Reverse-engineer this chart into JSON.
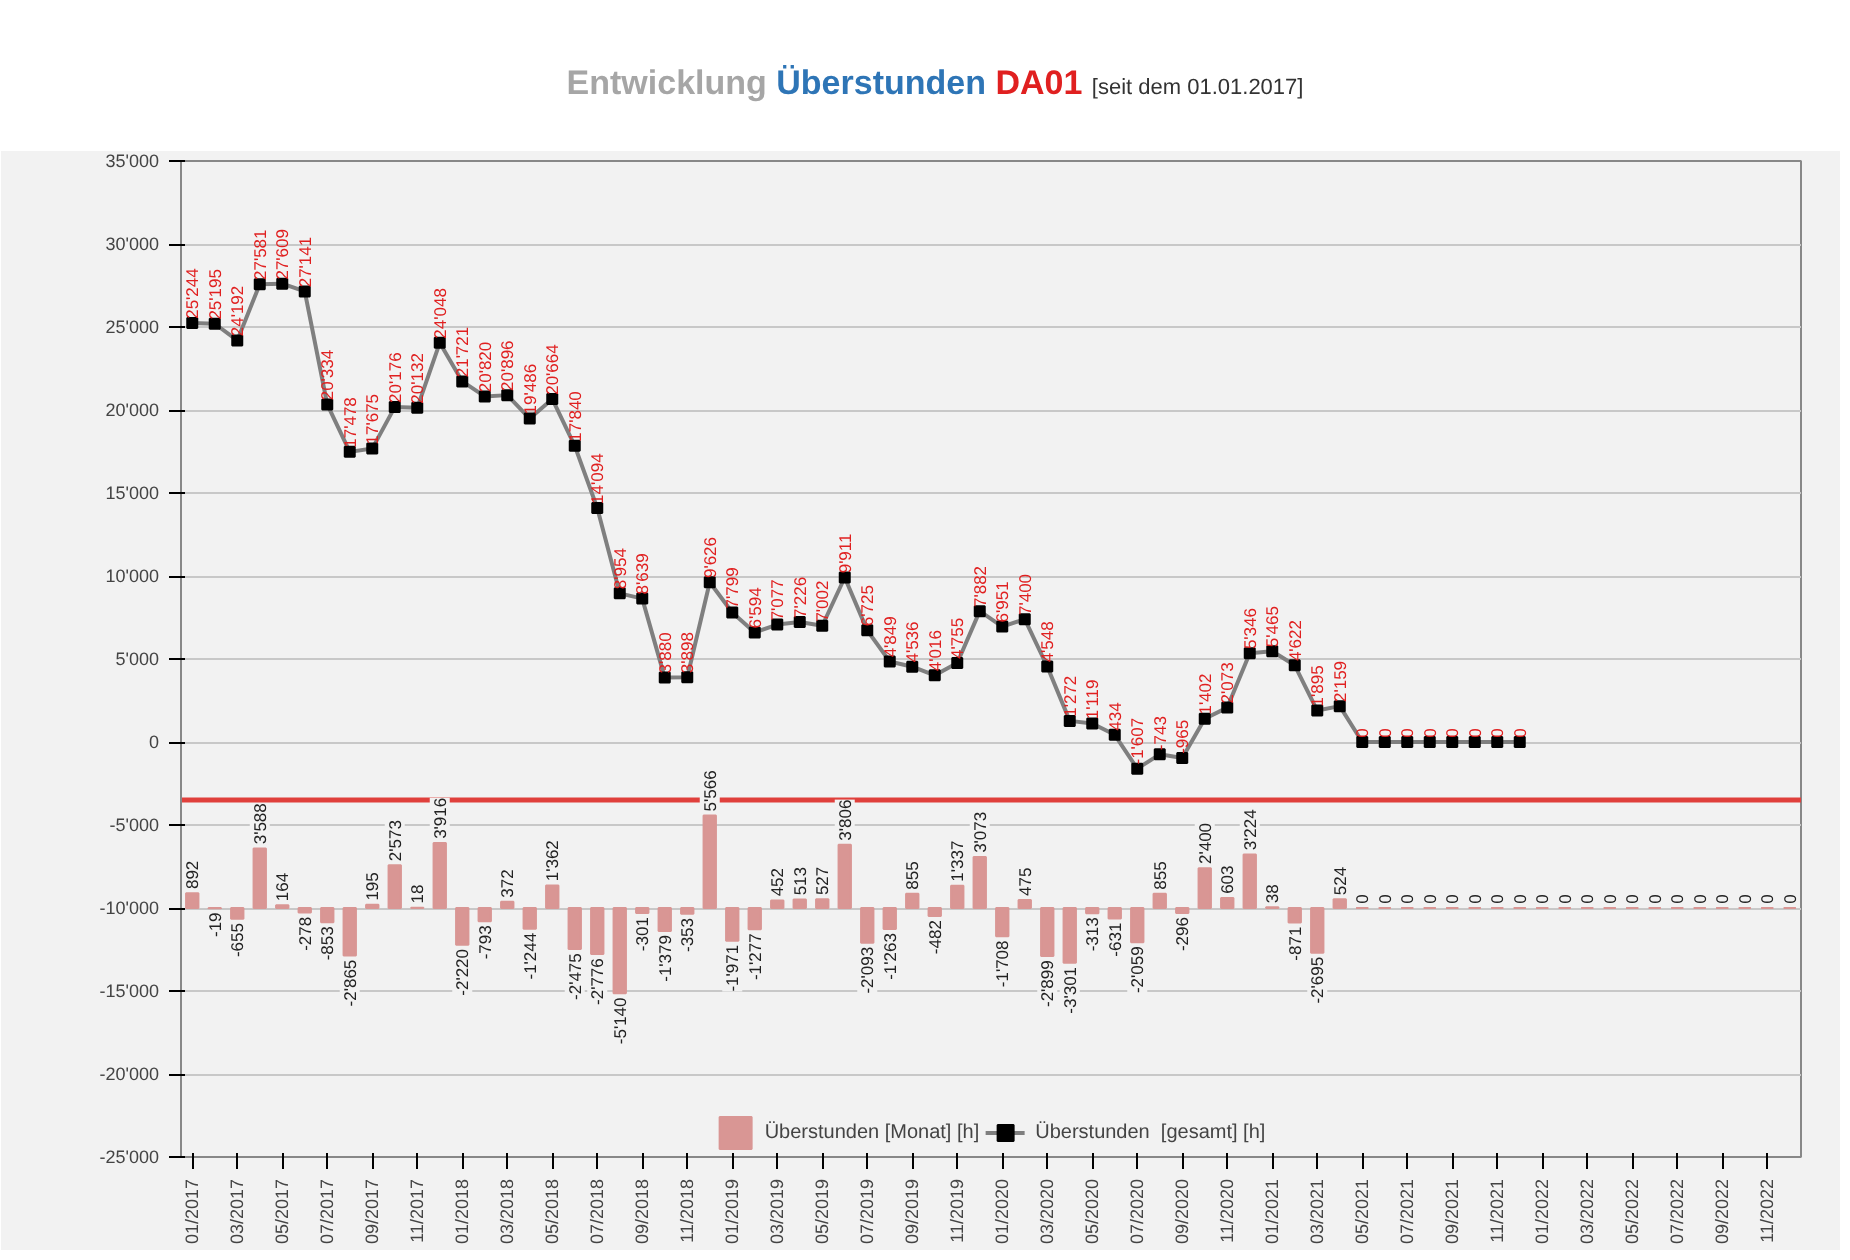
{
  "chart_data": {
    "type": "bar",
    "title": "Entwicklung Überstunden DA01",
    "subtitle": "[seit dem 01.01.2017]",
    "categories": [
      "01/2017",
      null,
      "03/2017",
      null,
      "05/2017",
      null,
      "07/2017",
      null,
      "09/2017",
      null,
      "11/2017",
      null,
      "01/2018",
      null,
      "03/2018",
      null,
      "05/2018",
      null,
      "07/2018",
      null,
      "09/2018",
      null,
      "11/2018",
      null,
      "01/2019",
      null,
      "03/2019",
      null,
      "05/2019",
      null,
      "07/2019",
      null,
      "09/2019",
      null,
      "11/2019",
      null,
      "01/2020",
      null,
      "03/2020",
      null,
      "05/2020",
      null,
      "07/2020",
      null,
      "09/2020",
      null,
      "11/2020",
      null,
      "01/2021",
      null,
      "03/2021",
      null,
      "05/2021",
      null,
      "07/2021",
      null,
      "09/2021",
      null,
      "11/2021",
      null,
      "01/2022",
      null,
      "03/2022",
      null,
      "05/2022",
      null,
      "07/2022",
      null,
      "09/2022",
      null,
      "11/2022",
      null
    ],
    "series": [
      {
        "name": "Überstunden [Monat] [h]",
        "color": "#d99694",
        "base": [
          -10000,
          -10000,
          -10000,
          -10000,
          -10000,
          -10000,
          -10000,
          -10000,
          -10000,
          -10000,
          -10000,
          -10000,
          -10000,
          -10000,
          -10000,
          -10000,
          -10000,
          -10000,
          -10000,
          -10000,
          -10000,
          -10000,
          -10000,
          -10000,
          -10000,
          -10000,
          -10000,
          -10000,
          -10000,
          -10000,
          -10000,
          -10000,
          -10000,
          -10000,
          -10000,
          -10000,
          -10000,
          -10000,
          -10000,
          -10000,
          -10000,
          -10000,
          -10000,
          -10000,
          -10000,
          -10000,
          -10000,
          -10000,
          -10000,
          -10000,
          -10000,
          -10000,
          -10000,
          -10000,
          -10000,
          -10000,
          -10000,
          -10000,
          -10000,
          -10000,
          -10000,
          -10000,
          -10000,
          -10000,
          -10000,
          -10000,
          -10000,
          -10000,
          -10000,
          -10000,
          -10000,
          -10000
        ],
        "values": [
          892,
          -19,
          -655,
          3588,
          164,
          -278,
          -853,
          -2865,
          195,
          2573,
          18,
          3916,
          -2220,
          -793,
          372,
          -1244,
          1362,
          -2475,
          -2776,
          -5140,
          -301,
          -1379,
          -353,
          5566,
          -1971,
          -1277,
          452,
          513,
          527,
          3806,
          -2093,
          -1263,
          855,
          -482,
          1337,
          3073,
          -1708,
          475,
          -2899,
          -3301,
          -313,
          -631,
          -2059,
          855,
          -296,
          2400,
          603,
          3224,
          38,
          -871,
          -2695,
          524,
          0,
          0,
          0,
          0,
          0,
          0,
          0,
          0,
          0,
          0,
          0,
          0,
          0,
          0,
          0,
          0,
          0,
          0,
          0,
          0
        ],
        "value_labels": [
          "892",
          "-19",
          "-655",
          "3'588",
          "164",
          "-278",
          "-853",
          "-2'865",
          "195",
          "2'573",
          "18",
          "3'916",
          "-2'220",
          "-793",
          "372",
          "-1'244",
          "1'362",
          "-2'475",
          "-2'776",
          "-5'140",
          "-301",
          "-1'379",
          "-353",
          "5'566",
          "-1'971",
          "-1'277",
          "452",
          "513",
          "527",
          "3'806",
          "-2'093",
          "-1'263",
          "855",
          "-482",
          "1'337",
          "3'073",
          "-1'708",
          "475",
          "-2'899",
          "-3'301",
          "-313",
          "-631",
          "-2'059",
          "855",
          "-296",
          "2'400",
          "603",
          "3'224",
          "38",
          "-871",
          "-2'695",
          "524",
          "0",
          "0",
          "0",
          "0",
          "0",
          "0",
          "0",
          "0",
          "0",
          "0",
          "0",
          "0",
          "0",
          "0",
          "0",
          "0",
          "0",
          "0",
          "0",
          "0"
        ]
      },
      {
        "name": "Überstunden  [gesamt] [h]",
        "type": "line",
        "color": "#7f7f7f",
        "marker": "square",
        "values": [
          25244,
          25195,
          24192,
          27581,
          27609,
          27141,
          20334,
          17478,
          17675,
          20176,
          20132,
          24048,
          21721,
          20820,
          20896,
          19486,
          20664,
          17840,
          14094,
          8954,
          8639,
          3880,
          3898,
          9626,
          7799,
          6594,
          7077,
          7226,
          7002,
          9911,
          6725,
          4849,
          4536,
          4016,
          4755,
          7882,
          6951,
          7400,
          4548,
          1272,
          1119,
          434,
          -1607,
          -743,
          -965,
          1402,
          2073,
          5346,
          5465,
          4622,
          1895,
          2159,
          0,
          0,
          0,
          0,
          0,
          0,
          0,
          0,
          null,
          null,
          null,
          null,
          null,
          null,
          null,
          null,
          null,
          null,
          null,
          null
        ],
        "value_labels": [
          "25'244",
          "25'195",
          "24'192",
          "27'581",
          "27'609",
          "27'141",
          "20'334",
          "17'478",
          "17'675",
          "20'176",
          "20'132",
          "24'048",
          "21'721",
          "20'820",
          "20'896",
          "19'486",
          "20'664",
          "17'840",
          "14'094",
          "8'954",
          "8'639",
          "3'880",
          "3'898",
          "9'626",
          "7'799",
          "6'594",
          "7'077",
          "7'226",
          "7'002",
          "9'911",
          "6'725",
          "4'849",
          "4'536",
          "4'016",
          "4'755",
          "7'882",
          "6'951",
          "7'400",
          "4'548",
          "1'272",
          "1'119",
          "434",
          "-1'607",
          "-743",
          "-965",
          "1'402",
          "2'073",
          "5'346",
          "5'465",
          "4'622",
          "1'895",
          "2'159",
          "0",
          "0",
          "0",
          "0",
          "0",
          "0",
          "0",
          "0",
          null,
          null,
          null,
          null,
          null,
          null,
          null,
          null,
          null,
          null,
          null,
          null
        ]
      }
    ],
    "ylim": [
      -25000,
      35000
    ],
    "yticks": [
      {
        "value": -25000,
        "label": "-25'000"
      },
      {
        "value": -20000,
        "label": "-20'000"
      },
      {
        "value": -15000,
        "label": "-15'000"
      },
      {
        "value": -10000,
        "label": "-10'000"
      },
      {
        "value": -5000,
        "label": "-5'000"
      },
      0,
      {
        "value": 5000,
        "label": "5'000"
      },
      {
        "value": 10000,
        "label": "10'000"
      },
      {
        "value": 15000,
        "label": "15'000"
      },
      {
        "value": 20000,
        "label": "20'000"
      },
      {
        "value": 25000,
        "label": "25'000"
      },
      {
        "value": 30000,
        "label": "30'000"
      },
      {
        "value": 35000,
        "label": "35'000"
      }
    ],
    "ref_lines": [
      {
        "axis": "y",
        "value": -3500,
        "color": "#e0403c"
      }
    ],
    "grid": "y",
    "legend": "bottom"
  }
}
